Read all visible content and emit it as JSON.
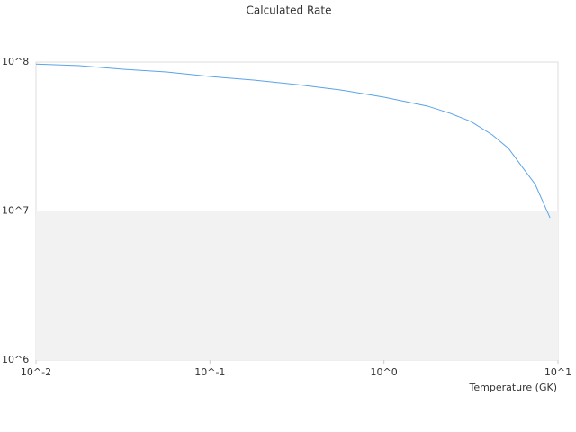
{
  "chart_data": {
    "type": "line",
    "title": "Calculated Rate",
    "x_label": "Temperature (GK)",
    "x_log": true,
    "y_log": true,
    "grid": true,
    "banded": true,
    "x": [
      0.01,
      0.0178,
      0.0316,
      0.0562,
      0.1,
      0.178,
      0.316,
      0.562,
      1,
      1.78,
      2.4,
      3.16,
      4.2,
      5.2,
      6.2,
      7.4,
      9.0
    ],
    "series": [
      {
        "color": "#5aa3e8",
        "values": [
          97000000,
          94600000,
          89500000,
          85800000,
          80000000,
          75700000,
          70600000,
          65000000,
          58100000,
          50600000,
          45300000,
          39900000,
          32400000,
          26300000,
          19900000,
          15100000,
          9000000
        ]
      }
    ],
    "xlim": [
      0.01,
      10
    ],
    "ylim": [
      1000000,
      100000000
    ],
    "xticks": [
      {
        "value": 0.01,
        "label": "10^-2"
      },
      {
        "value": 0.1,
        "label": "10^-1"
      },
      {
        "value": 1,
        "label": "10^0"
      },
      {
        "value": 10,
        "label": "10^1"
      }
    ],
    "yticks": [
      {
        "value": 1000000,
        "label": "10^6"
      },
      {
        "value": 10000000,
        "label": "10^7"
      },
      {
        "value": 100000000,
        "label": "10^8"
      }
    ]
  }
}
